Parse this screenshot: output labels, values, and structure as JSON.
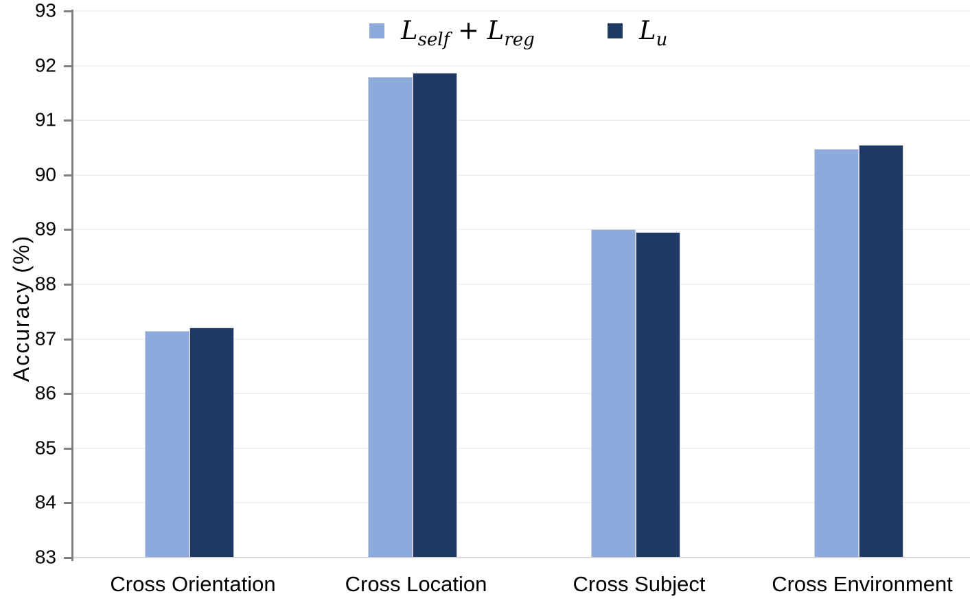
{
  "chart_data": {
    "type": "bar",
    "title": "",
    "categories": [
      "Cross Orientation",
      "Cross Location",
      "Cross Subject",
      "Cross Environment"
    ],
    "series": [
      {
        "name": "L_self + L_reg",
        "color": "#8EA9DB",
        "values": [
          87.15,
          91.8,
          89.0,
          90.48
        ]
      },
      {
        "name": "L_u",
        "color": "#1F3864",
        "values": [
          87.21,
          91.87,
          88.95,
          90.55
        ]
      }
    ],
    "xlabel": "",
    "ylabel": "Accuracy (%)",
    "ylim": [
      83,
      93
    ],
    "ytick_step": 1,
    "yticks": [
      83,
      84,
      85,
      86,
      87,
      88,
      89,
      90,
      91,
      92,
      93
    ],
    "grid": true,
    "legend_position": "top-center"
  },
  "colors": {
    "gridline": "#f2f2f2",
    "baseline": "#d9d9d9",
    "axis": "#808080",
    "bar_border": "#ccd3de",
    "text": "#000000",
    "background": "#ffffff"
  }
}
